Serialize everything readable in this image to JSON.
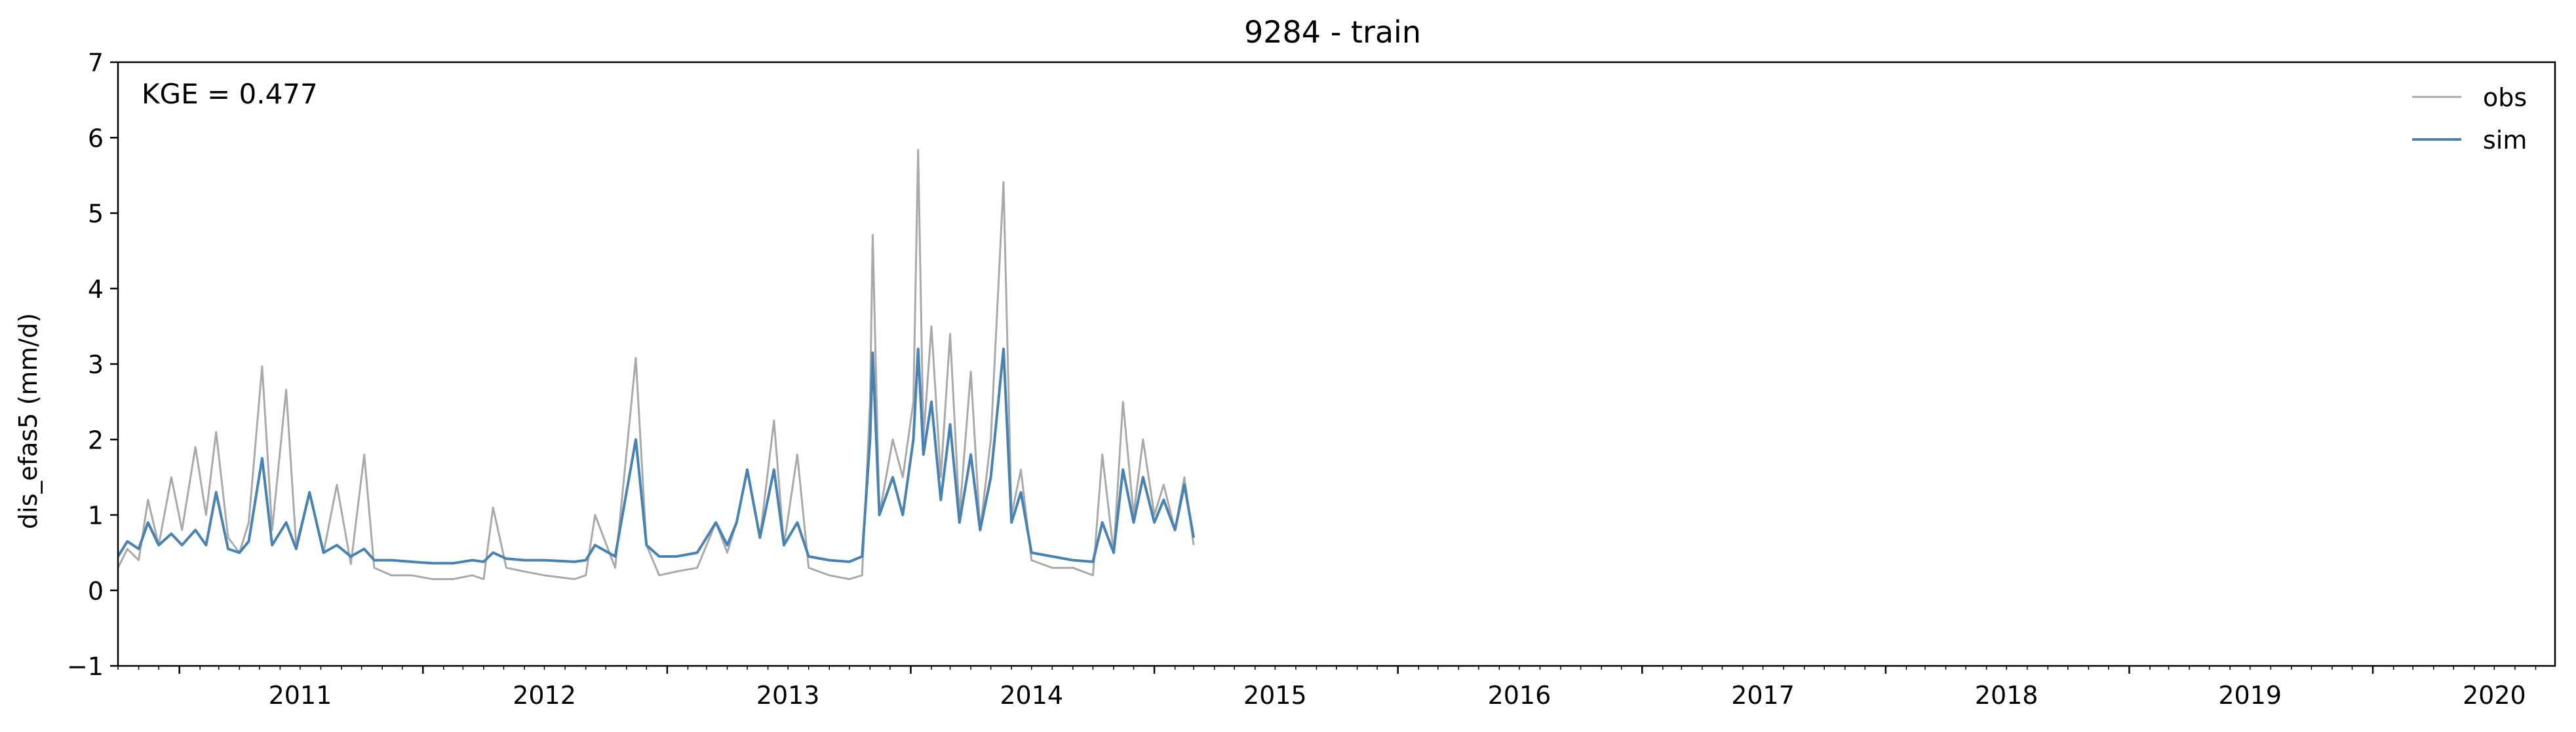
{
  "chart_data": {
    "type": "line",
    "title": "9284 - train",
    "xlabel": "",
    "ylabel": "dis_efas5 (mm/d)",
    "xlim": [
      "2010-10-01",
      "2020-09-30"
    ],
    "ylim": [
      -1,
      7
    ],
    "yticks": [
      -1,
      0,
      1,
      2,
      3,
      4,
      5,
      6,
      7
    ],
    "xtick_labels": [
      "2011",
      "2012",
      "2013",
      "2014",
      "2015",
      "2016",
      "2017",
      "2018",
      "2019",
      "2020"
    ],
    "grid": false,
    "legend_position": "top-right",
    "annotation": "KGE = 0.477",
    "series": [
      {
        "name": "obs",
        "color": "#a9a9a9",
        "points": [
          [
            "2010-10-01",
            0.3
          ],
          [
            "2010-10-15",
            0.55
          ],
          [
            "2010-11-01",
            0.4
          ],
          [
            "2010-11-15",
            1.2
          ],
          [
            "2010-12-01",
            0.6
          ],
          [
            "2010-12-20",
            1.5
          ],
          [
            "2011-01-05",
            0.8
          ],
          [
            "2011-01-25",
            1.9
          ],
          [
            "2011-02-10",
            1.0
          ],
          [
            "2011-02-25",
            2.1
          ],
          [
            "2011-03-15",
            0.7
          ],
          [
            "2011-04-01",
            0.5
          ],
          [
            "2011-04-15",
            0.9
          ],
          [
            "2011-05-05",
            2.97
          ],
          [
            "2011-05-20",
            0.8
          ],
          [
            "2011-06-10",
            2.66
          ],
          [
            "2011-06-25",
            0.6
          ],
          [
            "2011-07-15",
            1.3
          ],
          [
            "2011-08-05",
            0.5
          ],
          [
            "2011-08-25",
            1.4
          ],
          [
            "2011-09-15",
            0.35
          ],
          [
            "2011-10-05",
            1.8
          ],
          [
            "2011-10-20",
            0.3
          ],
          [
            "2011-11-15",
            0.2
          ],
          [
            "2011-12-15",
            0.2
          ],
          [
            "2012-01-15",
            0.15
          ],
          [
            "2012-02-15",
            0.15
          ],
          [
            "2012-03-15",
            0.2
          ],
          [
            "2012-04-01",
            0.15
          ],
          [
            "2012-04-15",
            1.1
          ],
          [
            "2012-05-05",
            0.3
          ],
          [
            "2012-06-01",
            0.25
          ],
          [
            "2012-07-01",
            0.2
          ],
          [
            "2012-08-15",
            0.15
          ],
          [
            "2012-09-01",
            0.2
          ],
          [
            "2012-09-15",
            1.0
          ],
          [
            "2012-10-15",
            0.3
          ],
          [
            "2012-11-15",
            3.08
          ],
          [
            "2012-12-01",
            0.6
          ],
          [
            "2012-12-20",
            0.2
          ],
          [
            "2013-01-15",
            0.25
          ],
          [
            "2013-02-15",
            0.3
          ],
          [
            "2013-03-15",
            0.9
          ],
          [
            "2013-04-01",
            0.5
          ],
          [
            "2013-04-15",
            0.9
          ],
          [
            "2013-05-01",
            1.6
          ],
          [
            "2013-05-20",
            0.7
          ],
          [
            "2013-06-10",
            2.25
          ],
          [
            "2013-06-25",
            0.6
          ],
          [
            "2013-07-15",
            1.8
          ],
          [
            "2013-08-01",
            0.3
          ],
          [
            "2013-09-01",
            0.2
          ],
          [
            "2013-10-01",
            0.15
          ],
          [
            "2013-10-20",
            0.2
          ],
          [
            "2013-11-01",
            2.5
          ],
          [
            "2013-11-05",
            4.71
          ],
          [
            "2013-11-15",
            1.0
          ],
          [
            "2013-12-05",
            2.0
          ],
          [
            "2013-12-20",
            1.5
          ],
          [
            "2014-01-05",
            2.5
          ],
          [
            "2014-01-12",
            5.84
          ],
          [
            "2014-01-20",
            2.0
          ],
          [
            "2014-02-01",
            3.5
          ],
          [
            "2014-02-15",
            1.5
          ],
          [
            "2014-03-01",
            3.4
          ],
          [
            "2014-03-15",
            1.0
          ],
          [
            "2014-04-01",
            2.9
          ],
          [
            "2014-04-15",
            0.8
          ],
          [
            "2014-05-01",
            2.0
          ],
          [
            "2014-05-20",
            5.41
          ],
          [
            "2014-06-01",
            1.0
          ],
          [
            "2014-06-15",
            1.6
          ],
          [
            "2014-07-01",
            0.4
          ],
          [
            "2014-08-01",
            0.3
          ],
          [
            "2014-09-01",
            0.3
          ],
          [
            "2014-10-01",
            0.2
          ],
          [
            "2014-10-15",
            1.8
          ],
          [
            "2014-11-01",
            0.5
          ],
          [
            "2014-11-15",
            2.5
          ],
          [
            "2014-12-01",
            1.0
          ],
          [
            "2014-12-15",
            2.0
          ],
          [
            "2015-01-01",
            1.0
          ],
          [
            "2015-01-15",
            1.4
          ],
          [
            "2015-02-01",
            0.8
          ],
          [
            "2015-02-15",
            1.5
          ],
          [
            "2015-03-01",
            0.6
          ]
        ]
      },
      {
        "name": "sim",
        "color": "#4682b4",
        "points": [
          [
            "2010-10-01",
            0.45
          ],
          [
            "2010-10-15",
            0.65
          ],
          [
            "2010-11-01",
            0.55
          ],
          [
            "2010-11-15",
            0.9
          ],
          [
            "2010-12-01",
            0.6
          ],
          [
            "2010-12-20",
            0.75
          ],
          [
            "2011-01-05",
            0.6
          ],
          [
            "2011-01-25",
            0.8
          ],
          [
            "2011-02-10",
            0.6
          ],
          [
            "2011-02-25",
            1.3
          ],
          [
            "2011-03-15",
            0.55
          ],
          [
            "2011-04-01",
            0.5
          ],
          [
            "2011-04-15",
            0.65
          ],
          [
            "2011-05-05",
            1.75
          ],
          [
            "2011-05-20",
            0.6
          ],
          [
            "2011-06-10",
            0.9
          ],
          [
            "2011-06-25",
            0.55
          ],
          [
            "2011-07-15",
            1.3
          ],
          [
            "2011-08-05",
            0.5
          ],
          [
            "2011-08-25",
            0.6
          ],
          [
            "2011-09-15",
            0.45
          ],
          [
            "2011-10-05",
            0.55
          ],
          [
            "2011-10-20",
            0.4
          ],
          [
            "2011-11-15",
            0.4
          ],
          [
            "2011-12-15",
            0.38
          ],
          [
            "2012-01-15",
            0.36
          ],
          [
            "2012-02-15",
            0.36
          ],
          [
            "2012-03-15",
            0.4
          ],
          [
            "2012-04-01",
            0.38
          ],
          [
            "2012-04-15",
            0.5
          ],
          [
            "2012-05-05",
            0.42
          ],
          [
            "2012-06-01",
            0.4
          ],
          [
            "2012-07-01",
            0.4
          ],
          [
            "2012-08-15",
            0.38
          ],
          [
            "2012-09-01",
            0.4
          ],
          [
            "2012-09-15",
            0.6
          ],
          [
            "2012-10-15",
            0.45
          ],
          [
            "2012-11-15",
            2.0
          ],
          [
            "2012-12-01",
            0.6
          ],
          [
            "2012-12-20",
            0.45
          ],
          [
            "2013-01-15",
            0.45
          ],
          [
            "2013-02-15",
            0.5
          ],
          [
            "2013-03-15",
            0.9
          ],
          [
            "2013-04-01",
            0.6
          ],
          [
            "2013-04-15",
            0.9
          ],
          [
            "2013-05-01",
            1.6
          ],
          [
            "2013-05-20",
            0.7
          ],
          [
            "2013-06-10",
            1.6
          ],
          [
            "2013-06-25",
            0.6
          ],
          [
            "2013-07-15",
            0.9
          ],
          [
            "2013-08-01",
            0.45
          ],
          [
            "2013-09-01",
            0.4
          ],
          [
            "2013-10-01",
            0.38
          ],
          [
            "2013-10-20",
            0.45
          ],
          [
            "2013-11-01",
            2.0
          ],
          [
            "2013-11-05",
            3.15
          ],
          [
            "2013-11-15",
            1.0
          ],
          [
            "2013-12-05",
            1.5
          ],
          [
            "2013-12-20",
            1.0
          ],
          [
            "2014-01-05",
            2.0
          ],
          [
            "2014-01-12",
            3.2
          ],
          [
            "2014-01-20",
            1.8
          ],
          [
            "2014-02-01",
            2.5
          ],
          [
            "2014-02-15",
            1.2
          ],
          [
            "2014-03-01",
            2.2
          ],
          [
            "2014-03-15",
            0.9
          ],
          [
            "2014-04-01",
            1.8
          ],
          [
            "2014-04-15",
            0.8
          ],
          [
            "2014-05-01",
            1.5
          ],
          [
            "2014-05-20",
            3.2
          ],
          [
            "2014-06-01",
            0.9
          ],
          [
            "2014-06-15",
            1.3
          ],
          [
            "2014-07-01",
            0.5
          ],
          [
            "2014-08-01",
            0.45
          ],
          [
            "2014-09-01",
            0.4
          ],
          [
            "2014-10-01",
            0.38
          ],
          [
            "2014-10-15",
            0.9
          ],
          [
            "2014-11-01",
            0.5
          ],
          [
            "2014-11-15",
            1.6
          ],
          [
            "2014-12-01",
            0.9
          ],
          [
            "2014-12-15",
            1.5
          ],
          [
            "2015-01-01",
            0.9
          ],
          [
            "2015-01-15",
            1.2
          ],
          [
            "2015-02-01",
            0.8
          ],
          [
            "2015-02-15",
            1.4
          ],
          [
            "2015-03-01",
            0.7
          ]
        ]
      }
    ]
  }
}
